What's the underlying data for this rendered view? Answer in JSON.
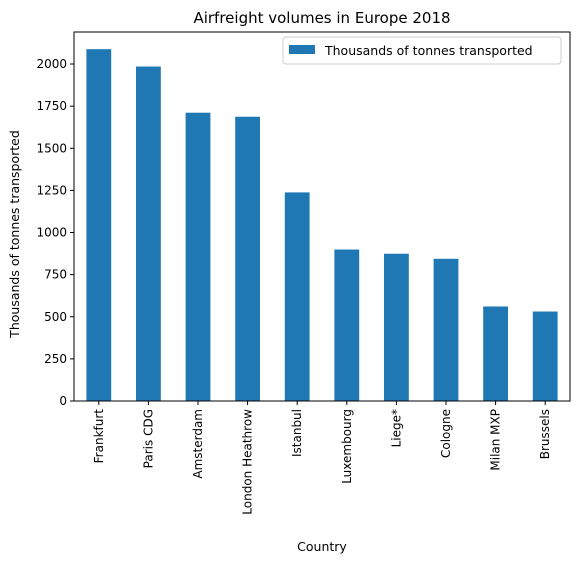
{
  "chart_data": {
    "type": "bar",
    "title": "Airfreight volumes in Europe 2018",
    "xlabel": "Country",
    "ylabel": "Thousands of tonnes transported",
    "categories": [
      "Frankfurt",
      "Paris CDG",
      "Amsterdam",
      "London Heathrow",
      "Istanbul",
      "Luxembourg",
      "Liege*",
      "Cologne",
      "Milan MXP",
      "Brussels"
    ],
    "series": [
      {
        "name": "Thousands of tonnes transported",
        "values": [
          2088,
          1985,
          1711,
          1687,
          1238,
          899,
          874,
          844,
          561,
          531
        ],
        "color": "#1f77b4"
      }
    ],
    "ylim": [
      0,
      2190
    ],
    "yticks": [
      0,
      250,
      500,
      750,
      1000,
      1250,
      1500,
      1750,
      2000
    ],
    "grid": false,
    "legend_position": "top-right"
  }
}
